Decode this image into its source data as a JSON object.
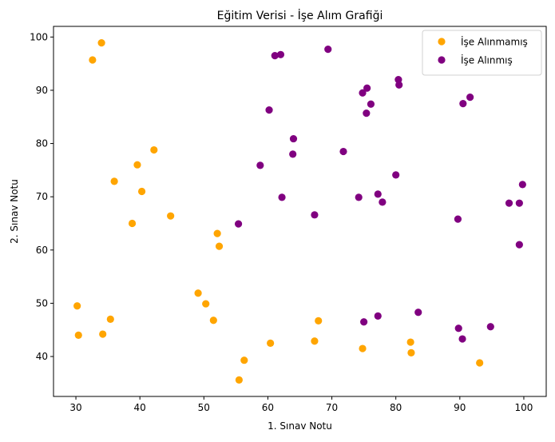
{
  "chart_data": {
    "type": "scatter",
    "title": "Eğitim Verisi - İşe Alım Grafiği",
    "xlabel": "1. Sınav Notu",
    "ylabel": "2. Sınav Notu",
    "xlim": [
      26.5,
      103.5
    ],
    "ylim": [
      32.5,
      102.0
    ],
    "xticks": [
      30,
      40,
      50,
      60,
      70,
      80,
      90,
      100
    ],
    "yticks": [
      40,
      50,
      60,
      70,
      80,
      90,
      100
    ],
    "grid": false,
    "legend_position": "top-right",
    "series": [
      {
        "name": "İşe Alınmamış",
        "color": "#FFA500",
        "marker": "circle",
        "points": [
          [
            34.0,
            98.9
          ],
          [
            32.6,
            95.7
          ],
          [
            42.2,
            78.8
          ],
          [
            39.6,
            76.0
          ],
          [
            36.0,
            72.9
          ],
          [
            40.3,
            71.0
          ],
          [
            44.8,
            66.4
          ],
          [
            38.8,
            65.0
          ],
          [
            52.1,
            63.1
          ],
          [
            52.4,
            60.7
          ],
          [
            30.2,
            49.5
          ],
          [
            49.1,
            51.9
          ],
          [
            50.3,
            49.9
          ],
          [
            35.4,
            47.0
          ],
          [
            51.5,
            46.8
          ],
          [
            34.2,
            44.2
          ],
          [
            30.4,
            44.0
          ],
          [
            67.9,
            46.7
          ],
          [
            60.4,
            42.5
          ],
          [
            67.3,
            42.9
          ],
          [
            74.8,
            41.5
          ],
          [
            82.3,
            42.7
          ],
          [
            82.4,
            40.7
          ],
          [
            56.3,
            39.3
          ],
          [
            93.1,
            38.8
          ],
          [
            55.5,
            35.6
          ]
        ]
      },
      {
        "name": "İşe Alınmış",
        "color": "#800080",
        "marker": "circle",
        "points": [
          [
            61.1,
            96.5
          ],
          [
            62.0,
            96.7
          ],
          [
            69.4,
            97.7
          ],
          [
            80.4,
            92.0
          ],
          [
            80.5,
            91.0
          ],
          [
            75.5,
            90.4
          ],
          [
            74.8,
            89.5
          ],
          [
            91.6,
            88.7
          ],
          [
            90.5,
            87.5
          ],
          [
            76.1,
            87.4
          ],
          [
            75.4,
            85.7
          ],
          [
            60.2,
            86.3
          ],
          [
            64.0,
            80.9
          ],
          [
            71.8,
            78.5
          ],
          [
            63.9,
            78.0
          ],
          [
            58.8,
            75.9
          ],
          [
            80.0,
            74.1
          ],
          [
            99.8,
            72.3
          ],
          [
            62.2,
            69.9
          ],
          [
            74.2,
            69.9
          ],
          [
            77.2,
            70.5
          ],
          [
            77.9,
            69.0
          ],
          [
            97.7,
            68.8
          ],
          [
            99.3,
            68.8
          ],
          [
            67.3,
            66.6
          ],
          [
            89.7,
            65.8
          ],
          [
            55.4,
            64.9
          ],
          [
            99.3,
            61.0
          ],
          [
            83.5,
            48.3
          ],
          [
            77.2,
            47.6
          ],
          [
            75.0,
            46.5
          ],
          [
            94.8,
            45.6
          ],
          [
            89.8,
            45.3
          ],
          [
            90.4,
            43.3
          ]
        ]
      }
    ]
  }
}
